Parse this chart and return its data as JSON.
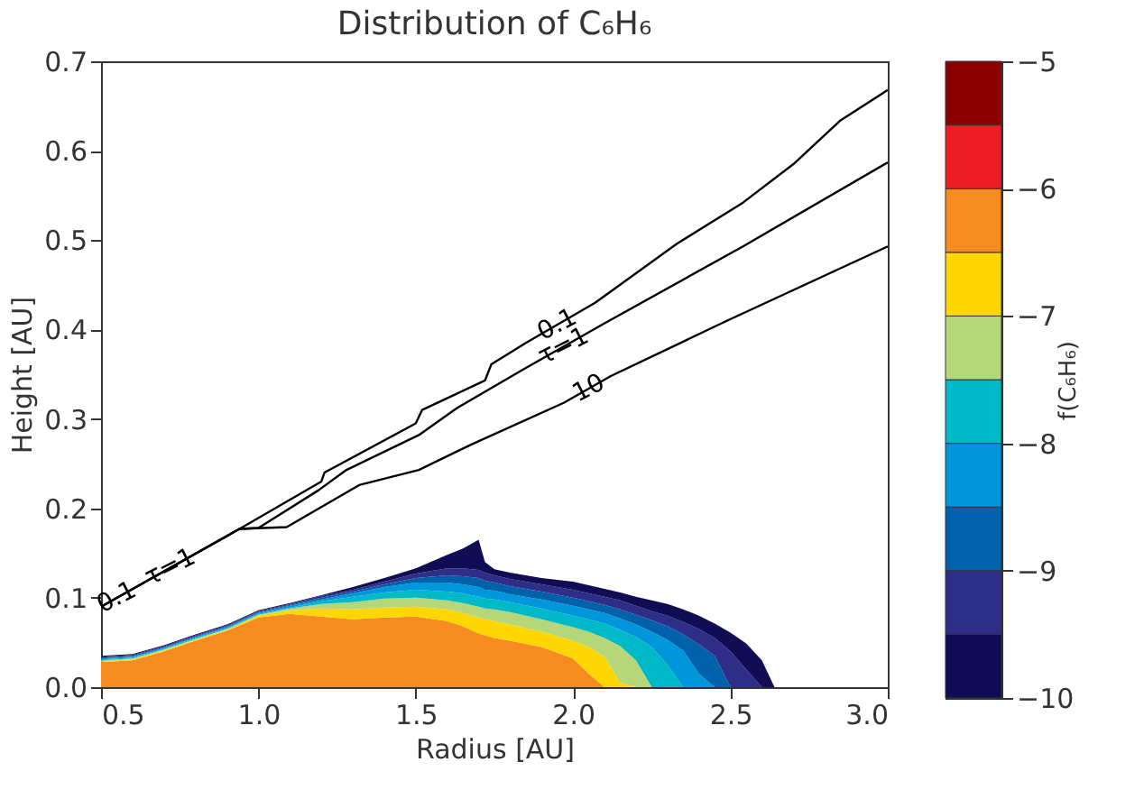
{
  "chart_data": {
    "type": "area",
    "title": "Distribution of C₆H₆",
    "xlabel": "Radius [AU]",
    "ylabel": "Height [AU]",
    "clabel": "f(C₆H₆)",
    "xlim": [
      0.5,
      3.0
    ],
    "ylim": [
      0.0,
      0.7
    ],
    "xticks": [
      0.5,
      {
        "value": 1,
        "label": "1.0"
      },
      1.5,
      {
        "value": 2,
        "label": "2.0"
      },
      2.5,
      {
        "value": 3,
        "label": "3.0"
      }
    ],
    "yticks": [
      {
        "value": 0,
        "label": "0.0"
      },
      0.1,
      0.2,
      0.3,
      0.4,
      0.5,
      0.6,
      0.7
    ],
    "clim": [
      -10,
      -5
    ],
    "cticks": [
      -10,
      -9,
      -8,
      -7,
      -6,
      -5
    ],
    "colors": [
      "#100d55",
      "#2e2d88",
      "#0061ab",
      "#0096dc",
      "#00b9c8",
      "#b5d77a",
      "#ffd700",
      "#f68b1f",
      "#ee1c25",
      "#8b0000"
    ],
    "stacked": true,
    "x": [
      0.5,
      0.6,
      0.7,
      0.8,
      0.9,
      1.0,
      1.1,
      1.2,
      1.3,
      1.4,
      1.5,
      1.6,
      1.65,
      1.7,
      1.72,
      1.75,
      1.8,
      1.9,
      2.0,
      2.05,
      2.1,
      2.15,
      2.2,
      2.25,
      2.3,
      2.35,
      2.4,
      2.45,
      2.5,
      2.55,
      2.6,
      2.64
    ],
    "series": [
      {
        "color": "#f68b1f",
        "values": [
          0.028,
          0.03,
          0.04,
          0.052,
          0.063,
          0.078,
          0.082,
          0.079,
          0.076,
          0.078,
          0.079,
          0.074,
          0.068,
          0.06,
          0.058,
          0.055,
          0.052,
          0.045,
          0.032,
          0.015,
          0,
          0,
          0,
          0,
          0,
          0,
          0,
          0,
          0,
          0,
          0,
          0
        ]
      },
      {
        "color": "#ffd700",
        "values": [
          0.001,
          0.001,
          0.001,
          0.001,
          0.001,
          0.002,
          0.004,
          0.009,
          0.011,
          0.011,
          0.011,
          0.013,
          0.015,
          0.018,
          0.018,
          0.019,
          0.018,
          0.017,
          0.02,
          0.03,
          0.034,
          0.005,
          0,
          0,
          0,
          0,
          0,
          0,
          0,
          0,
          0,
          0
        ]
      },
      {
        "color": "#b5d77a",
        "values": [
          0.001,
          0.001,
          0.001,
          0.001,
          0.001,
          0.001,
          0.002,
          0.005,
          0.008,
          0.01,
          0.01,
          0.01,
          0.011,
          0.012,
          0.012,
          0.013,
          0.014,
          0.014,
          0.015,
          0.017,
          0.021,
          0.041,
          0.03,
          0,
          0,
          0,
          0,
          0,
          0,
          0,
          0,
          0
        ]
      },
      {
        "color": "#00b9c8",
        "values": [
          0.001,
          0.001,
          0.001,
          0.001,
          0.001,
          0.001,
          0.001,
          0.003,
          0.006,
          0.007,
          0.009,
          0.01,
          0.011,
          0.011,
          0.011,
          0.011,
          0.011,
          0.012,
          0.013,
          0.014,
          0.016,
          0.018,
          0.026,
          0.045,
          0.025,
          0,
          0,
          0,
          0,
          0,
          0,
          0
        ]
      },
      {
        "color": "#0096dc",
        "values": [
          0.001,
          0.001,
          0.001,
          0.001,
          0.001,
          0.001,
          0.002,
          0.002,
          0.004,
          0.006,
          0.008,
          0.01,
          0.01,
          0.011,
          0.01,
          0.01,
          0.009,
          0.01,
          0.011,
          0.011,
          0.012,
          0.013,
          0.014,
          0.017,
          0.028,
          0.041,
          0.015,
          0,
          0,
          0,
          0,
          0
        ]
      },
      {
        "color": "#0061ab",
        "values": [
          0.001,
          0.001,
          0.001,
          0.001,
          0.001,
          0.001,
          0.001,
          0.002,
          0.002,
          0.003,
          0.005,
          0.008,
          0.009,
          0.01,
          0.01,
          0.009,
          0.009,
          0.009,
          0.009,
          0.009,
          0.009,
          0.01,
          0.011,
          0.013,
          0.015,
          0.018,
          0.033,
          0.035,
          0,
          0,
          0,
          0
        ]
      },
      {
        "color": "#2e2d88",
        "values": [
          0.001,
          0.001,
          0.001,
          0.001,
          0.001,
          0.001,
          0.001,
          0.002,
          0.002,
          0.003,
          0.005,
          0.008,
          0.009,
          0.009,
          0.009,
          0.008,
          0.008,
          0.008,
          0.009,
          0.009,
          0.009,
          0.01,
          0.01,
          0.01,
          0.012,
          0.014,
          0.017,
          0.02,
          0.04,
          0.02,
          0,
          0
        ]
      },
      {
        "color": "#100d55",
        "values": [
          0.001,
          0.001,
          0.001,
          0.001,
          0.001,
          0.001,
          0.001,
          0.001,
          0.003,
          0.004,
          0.006,
          0.015,
          0.022,
          0.034,
          0.012,
          0.007,
          0.007,
          0.007,
          0.009,
          0.009,
          0.009,
          0.009,
          0.01,
          0.012,
          0.013,
          0.014,
          0.015,
          0.016,
          0.021,
          0.029,
          0.03,
          0
        ]
      },
      {
        "type": "line",
        "color": "#000000",
        "x": [
          0.5,
          0.94,
          1.2,
          1.21,
          1.5,
          1.52,
          1.72,
          1.74,
          1.85,
          2.07,
          2.33,
          2.54,
          2.7,
          2.85,
          3.0
        ],
        "values": [
          0.09,
          0.177,
          0.23,
          0.24,
          0.295,
          0.31,
          0.343,
          0.361,
          0.385,
          0.43,
          0.496,
          0.542,
          0.585,
          0.634,
          0.668
        ]
      },
      {
        "type": "line",
        "color": "#000000",
        "x": [
          0.5,
          0.94,
          1.0,
          1.19,
          1.28,
          1.51,
          1.63,
          1.84,
          2.1,
          2.54,
          3.0
        ],
        "values": [
          0.09,
          0.177,
          0.178,
          0.22,
          0.243,
          0.282,
          0.312,
          0.355,
          0.407,
          0.493,
          0.587
        ]
      },
      {
        "type": "line",
        "color": "#000000",
        "x": [
          0.5,
          0.94,
          1.09,
          1.32,
          1.51,
          1.68,
          1.97,
          2.12,
          2.49,
          3.0
        ],
        "values": [
          0.09,
          0.177,
          0.179,
          0.226,
          0.243,
          0.272,
          0.318,
          0.348,
          0.41,
          0.493
        ]
      }
    ],
    "annotations": [
      {
        "text": "0.1",
        "x": 1.95,
        "y": 0.405
      },
      {
        "text": "τ=1",
        "x": 1.97,
        "y": 0.381
      },
      {
        "text": "10",
        "x": 2.05,
        "y": 0.334
      },
      {
        "text": "0.1",
        "x": 0.55,
        "y": 0.1
      },
      {
        "text": "τ=1",
        "x": 0.72,
        "y": 0.134
      }
    ]
  }
}
